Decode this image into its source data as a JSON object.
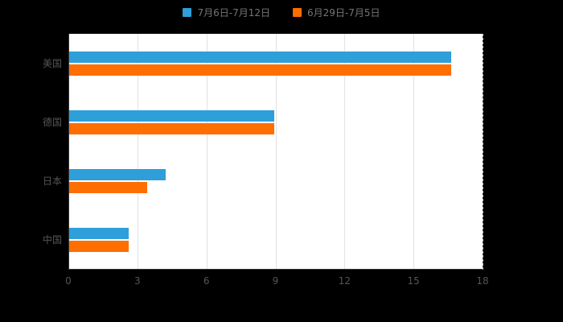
{
  "colors": {
    "background": "#000000",
    "plot_background": "#ffffff",
    "axis_line": "#333333",
    "grid_line": "#e2e2e2",
    "label_text": "#555555",
    "legend_text": "#757575"
  },
  "chart_data": {
    "type": "bar",
    "orientation": "horizontal",
    "title": "",
    "xlabel": "",
    "ylabel": "",
    "categories": [
      "美国",
      "德国",
      "日本",
      "中国"
    ],
    "series": [
      {
        "name": "7月6日-7月12日",
        "color": "#2E9FD9",
        "values": [
          16.6,
          8.9,
          4.2,
          2.6
        ]
      },
      {
        "name": "6月29日-7月5日",
        "color": "#FF6E00",
        "values": [
          16.6,
          8.9,
          3.4,
          2.6
        ]
      }
    ],
    "xlim": [
      0,
      18
    ],
    "xticks": [
      0,
      3,
      6,
      9,
      12,
      15,
      18
    ],
    "grid": true,
    "grid_dashed_at": 18,
    "legend_position": "top"
  }
}
